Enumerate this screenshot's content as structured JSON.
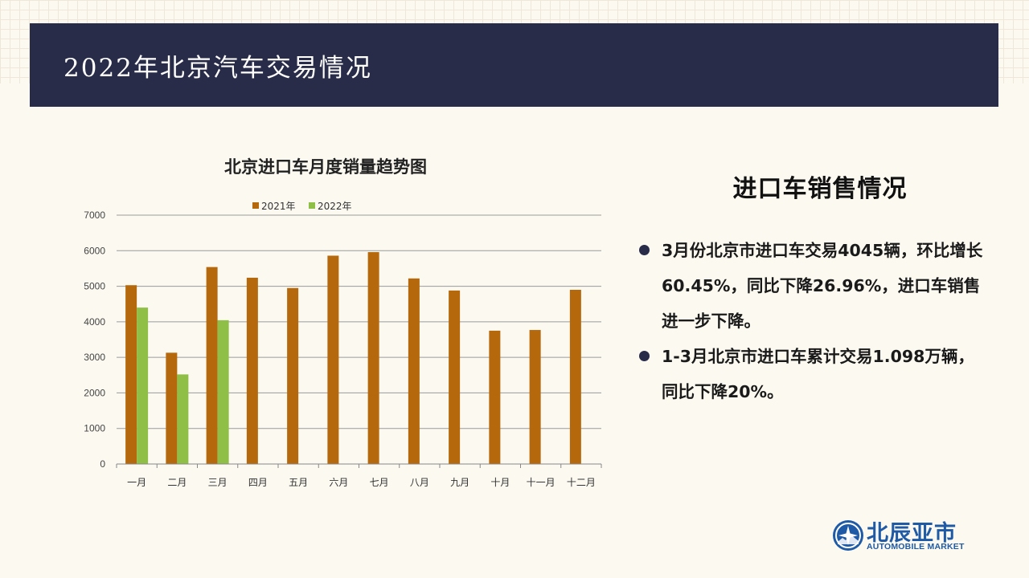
{
  "header": {
    "title": "2022年北京汽车交易情况"
  },
  "chart_data": {
    "type": "bar",
    "title": "北京进口车月度销量趋势图",
    "categories": [
      "一月",
      "二月",
      "三月",
      "四月",
      "五月",
      "六月",
      "七月",
      "八月",
      "九月",
      "十月",
      "十一月",
      "十二月"
    ],
    "series": [
      {
        "name": "2021年",
        "color": "#b5690c",
        "values": [
          5030,
          3130,
          5540,
          5240,
          4950,
          5860,
          5960,
          5220,
          4880,
          3750,
          3770,
          4900
        ]
      },
      {
        "name": "2022年",
        "color": "#8fbf47",
        "values": [
          4400,
          2520,
          4045,
          null,
          null,
          null,
          null,
          null,
          null,
          null,
          null,
          null
        ]
      }
    ],
    "ylim": [
      0,
      7000
    ],
    "yticks": [
      0,
      1000,
      2000,
      3000,
      4000,
      5000,
      6000,
      7000
    ],
    "grid": true,
    "legend": "top"
  },
  "side": {
    "title": "进口车销售情况",
    "bullets": [
      "3月份北京市进口车交易4045辆，环比增长60.45%，同比下降26.96%，进口车销售进一步下降。",
      "1-3月北京市进口车累计交易1.098万辆，同比下降20%。"
    ]
  },
  "logo": {
    "cn": "北辰亚市",
    "en": "AUTOMOBILE MARKET"
  }
}
